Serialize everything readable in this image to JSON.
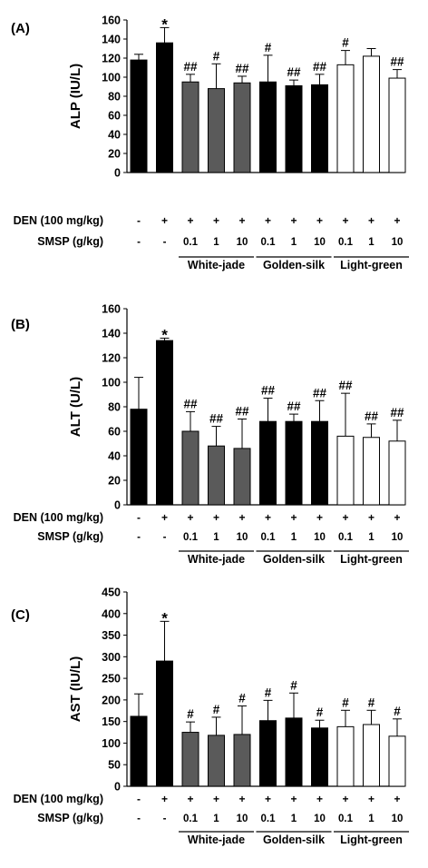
{
  "colors": {
    "black": "#000000",
    "gray": "#5a5a5a",
    "white": "#ffffff"
  },
  "row_labels": {
    "den": "DEN (100 mg/kg)",
    "smsp": "SMSP (g/kg)"
  },
  "chart_data": [
    {
      "type": "bar",
      "panel_label": "(A)",
      "ylabel": "ALP (IU/L)",
      "ylim": [
        0,
        160
      ],
      "yticks": [
        "0",
        "20",
        "40",
        "60",
        "80",
        "100",
        "120",
        "140",
        "160"
      ],
      "categories": [
        "1",
        "2",
        "3",
        "4",
        "5",
        "6",
        "7",
        "8",
        "9",
        "10",
        "11"
      ],
      "values": [
        118,
        136,
        95,
        88,
        94,
        95,
        91,
        92,
        113,
        122,
        99
      ],
      "errors": [
        6,
        16,
        8,
        26,
        7,
        28,
        6,
        11,
        15,
        8,
        9
      ],
      "markers": [
        "",
        "*",
        "##",
        "#",
        "##",
        "#",
        "##",
        "##",
        "#",
        "",
        "##"
      ],
      "fills": [
        "black",
        "black",
        "gray",
        "gray",
        "gray",
        "black",
        "black",
        "black",
        "white",
        "white",
        "white"
      ],
      "den": [
        "-",
        "+",
        "+",
        "+",
        "+",
        "+",
        "+",
        "+",
        "+",
        "+",
        "+"
      ],
      "smsp": [
        "-",
        "-",
        "0.1",
        "1",
        "10",
        "0.1",
        "1",
        "10",
        "0.1",
        "1",
        "10"
      ],
      "groups": [
        "White-jade",
        "Golden-silk",
        "Light-green"
      ]
    },
    {
      "type": "bar",
      "panel_label": "(B)",
      "ylabel": "ALT (U/L)",
      "ylim": [
        0,
        160
      ],
      "yticks": [
        "0",
        "20",
        "40",
        "60",
        "80",
        "100",
        "120",
        "140",
        "160"
      ],
      "categories": [
        "1",
        "2",
        "3",
        "4",
        "5",
        "6",
        "7",
        "8",
        "9",
        "10",
        "11"
      ],
      "values": [
        78,
        134,
        60,
        48,
        46,
        68,
        68,
        68,
        56,
        55,
        52
      ],
      "errors": [
        26,
        2,
        16,
        16,
        24,
        19,
        6,
        17,
        35,
        11,
        17
      ],
      "markers": [
        "",
        "*",
        "##",
        "##",
        "##",
        "##",
        "##",
        "##",
        "##",
        "##",
        "##"
      ],
      "fills": [
        "black",
        "black",
        "gray",
        "gray",
        "gray",
        "black",
        "black",
        "black",
        "white",
        "white",
        "white"
      ],
      "den": [
        "-",
        "+",
        "+",
        "+",
        "+",
        "+",
        "+",
        "+",
        "+",
        "+",
        "+"
      ],
      "smsp": [
        "-",
        "-",
        "0.1",
        "1",
        "10",
        "0.1",
        "1",
        "10",
        "0.1",
        "1",
        "10"
      ],
      "groups": [
        "White-jade",
        "Golden-silk",
        "Light-green"
      ]
    },
    {
      "type": "bar",
      "panel_label": "(C)",
      "ylabel": "AST (IU/L)",
      "ylim": [
        0,
        450
      ],
      "yticks": [
        "0",
        "50",
        "100",
        "150",
        "200",
        "250",
        "300",
        "350",
        "400",
        "450"
      ],
      "categories": [
        "1",
        "2",
        "3",
        "4",
        "5",
        "6",
        "7",
        "8",
        "9",
        "10",
        "11"
      ],
      "values": [
        162,
        290,
        125,
        118,
        120,
        152,
        158,
        135,
        138,
        143,
        116
      ],
      "errors": [
        52,
        92,
        24,
        42,
        66,
        47,
        58,
        18,
        38,
        33,
        40
      ],
      "markers": [
        "",
        "*",
        "#",
        "#",
        "#",
        "#",
        "#",
        "#",
        "#",
        "#",
        "#"
      ],
      "fills": [
        "black",
        "black",
        "gray",
        "gray",
        "gray",
        "black",
        "black",
        "black",
        "white",
        "white",
        "white"
      ],
      "den": [
        "-",
        "+",
        "+",
        "+",
        "+",
        "+",
        "+",
        "+",
        "+",
        "+",
        "+"
      ],
      "smsp": [
        "-",
        "-",
        "0.1",
        "1",
        "10",
        "0.1",
        "1",
        "10",
        "0.1",
        "1",
        "10"
      ],
      "groups": [
        "White-jade",
        "Golden-silk",
        "Light-green"
      ]
    }
  ]
}
